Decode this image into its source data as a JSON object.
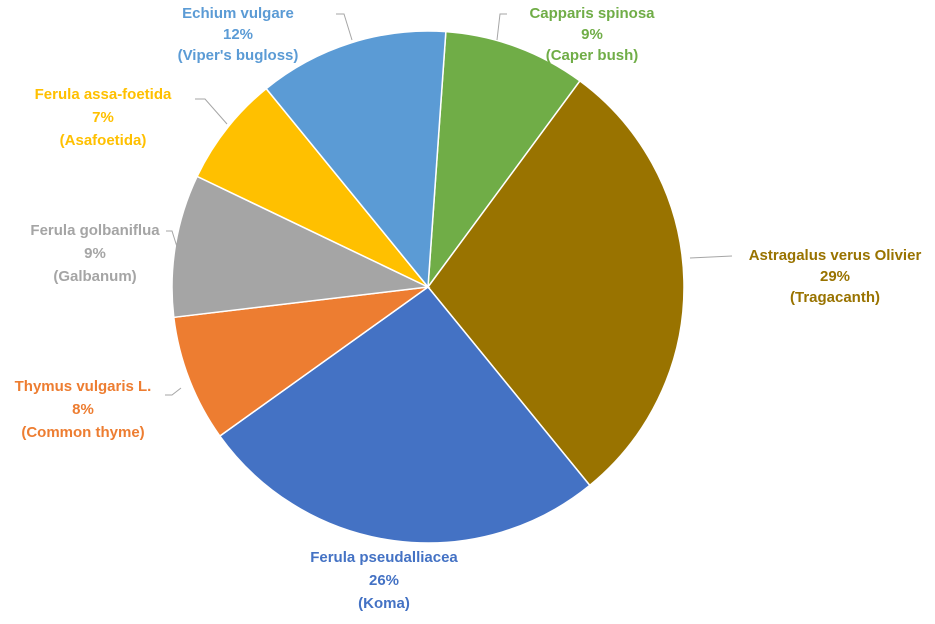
{
  "chart_data": {
    "type": "pie",
    "categories": [
      "Capparis spinosa",
      "Astragalus verus Olivier",
      "Ferula pseudalliacea",
      "Thymus vulgaris L.",
      "Ferula golbaniflua",
      "Ferula assa-foetida",
      "Echium vulgare"
    ],
    "values": [
      9,
      29,
      26,
      8,
      9,
      7,
      12
    ],
    "value_labels": [
      "9%",
      "29%",
      "26%",
      "8%",
      "9%",
      "7%",
      "12%"
    ],
    "common_names": [
      "(Caper bush)",
      "(Tragacanth)",
      "(Koma)",
      "(Common thyme)",
      "(Galbanum)",
      "(Asafoetida)",
      "(Viper's bugloss)"
    ],
    "colors": [
      "#70ad47",
      "#997300",
      "#4472c4",
      "#ed7d31",
      "#a5a5a5",
      "#ffc000",
      "#5b9bd5"
    ]
  }
}
